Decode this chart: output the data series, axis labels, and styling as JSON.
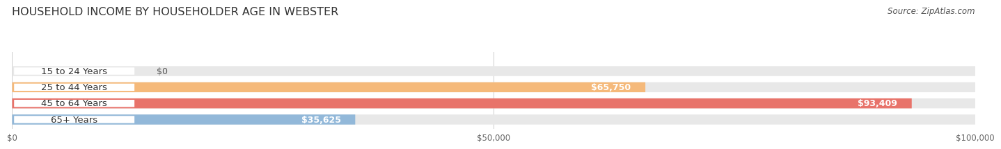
{
  "title": "HOUSEHOLD INCOME BY HOUSEHOLDER AGE IN WEBSTER",
  "source": "Source: ZipAtlas.com",
  "categories": [
    "15 to 24 Years",
    "25 to 44 Years",
    "45 to 64 Years",
    "65+ Years"
  ],
  "values": [
    0,
    65750,
    93409,
    35625
  ],
  "bar_colors": [
    "#f4919e",
    "#f5b97a",
    "#e8736a",
    "#92b8d9"
  ],
  "bar_bg_color": "#e8e8e8",
  "value_labels": [
    "$0",
    "$65,750",
    "$93,409",
    "$35,625"
  ],
  "xlim": [
    0,
    100000
  ],
  "xticks": [
    0,
    50000,
    100000
  ],
  "xticklabels": [
    "$0",
    "$50,000",
    "$100,000"
  ],
  "title_fontsize": 11.5,
  "source_fontsize": 8.5,
  "label_fontsize": 9.5,
  "value_fontsize": 9,
  "background_color": "#ffffff"
}
